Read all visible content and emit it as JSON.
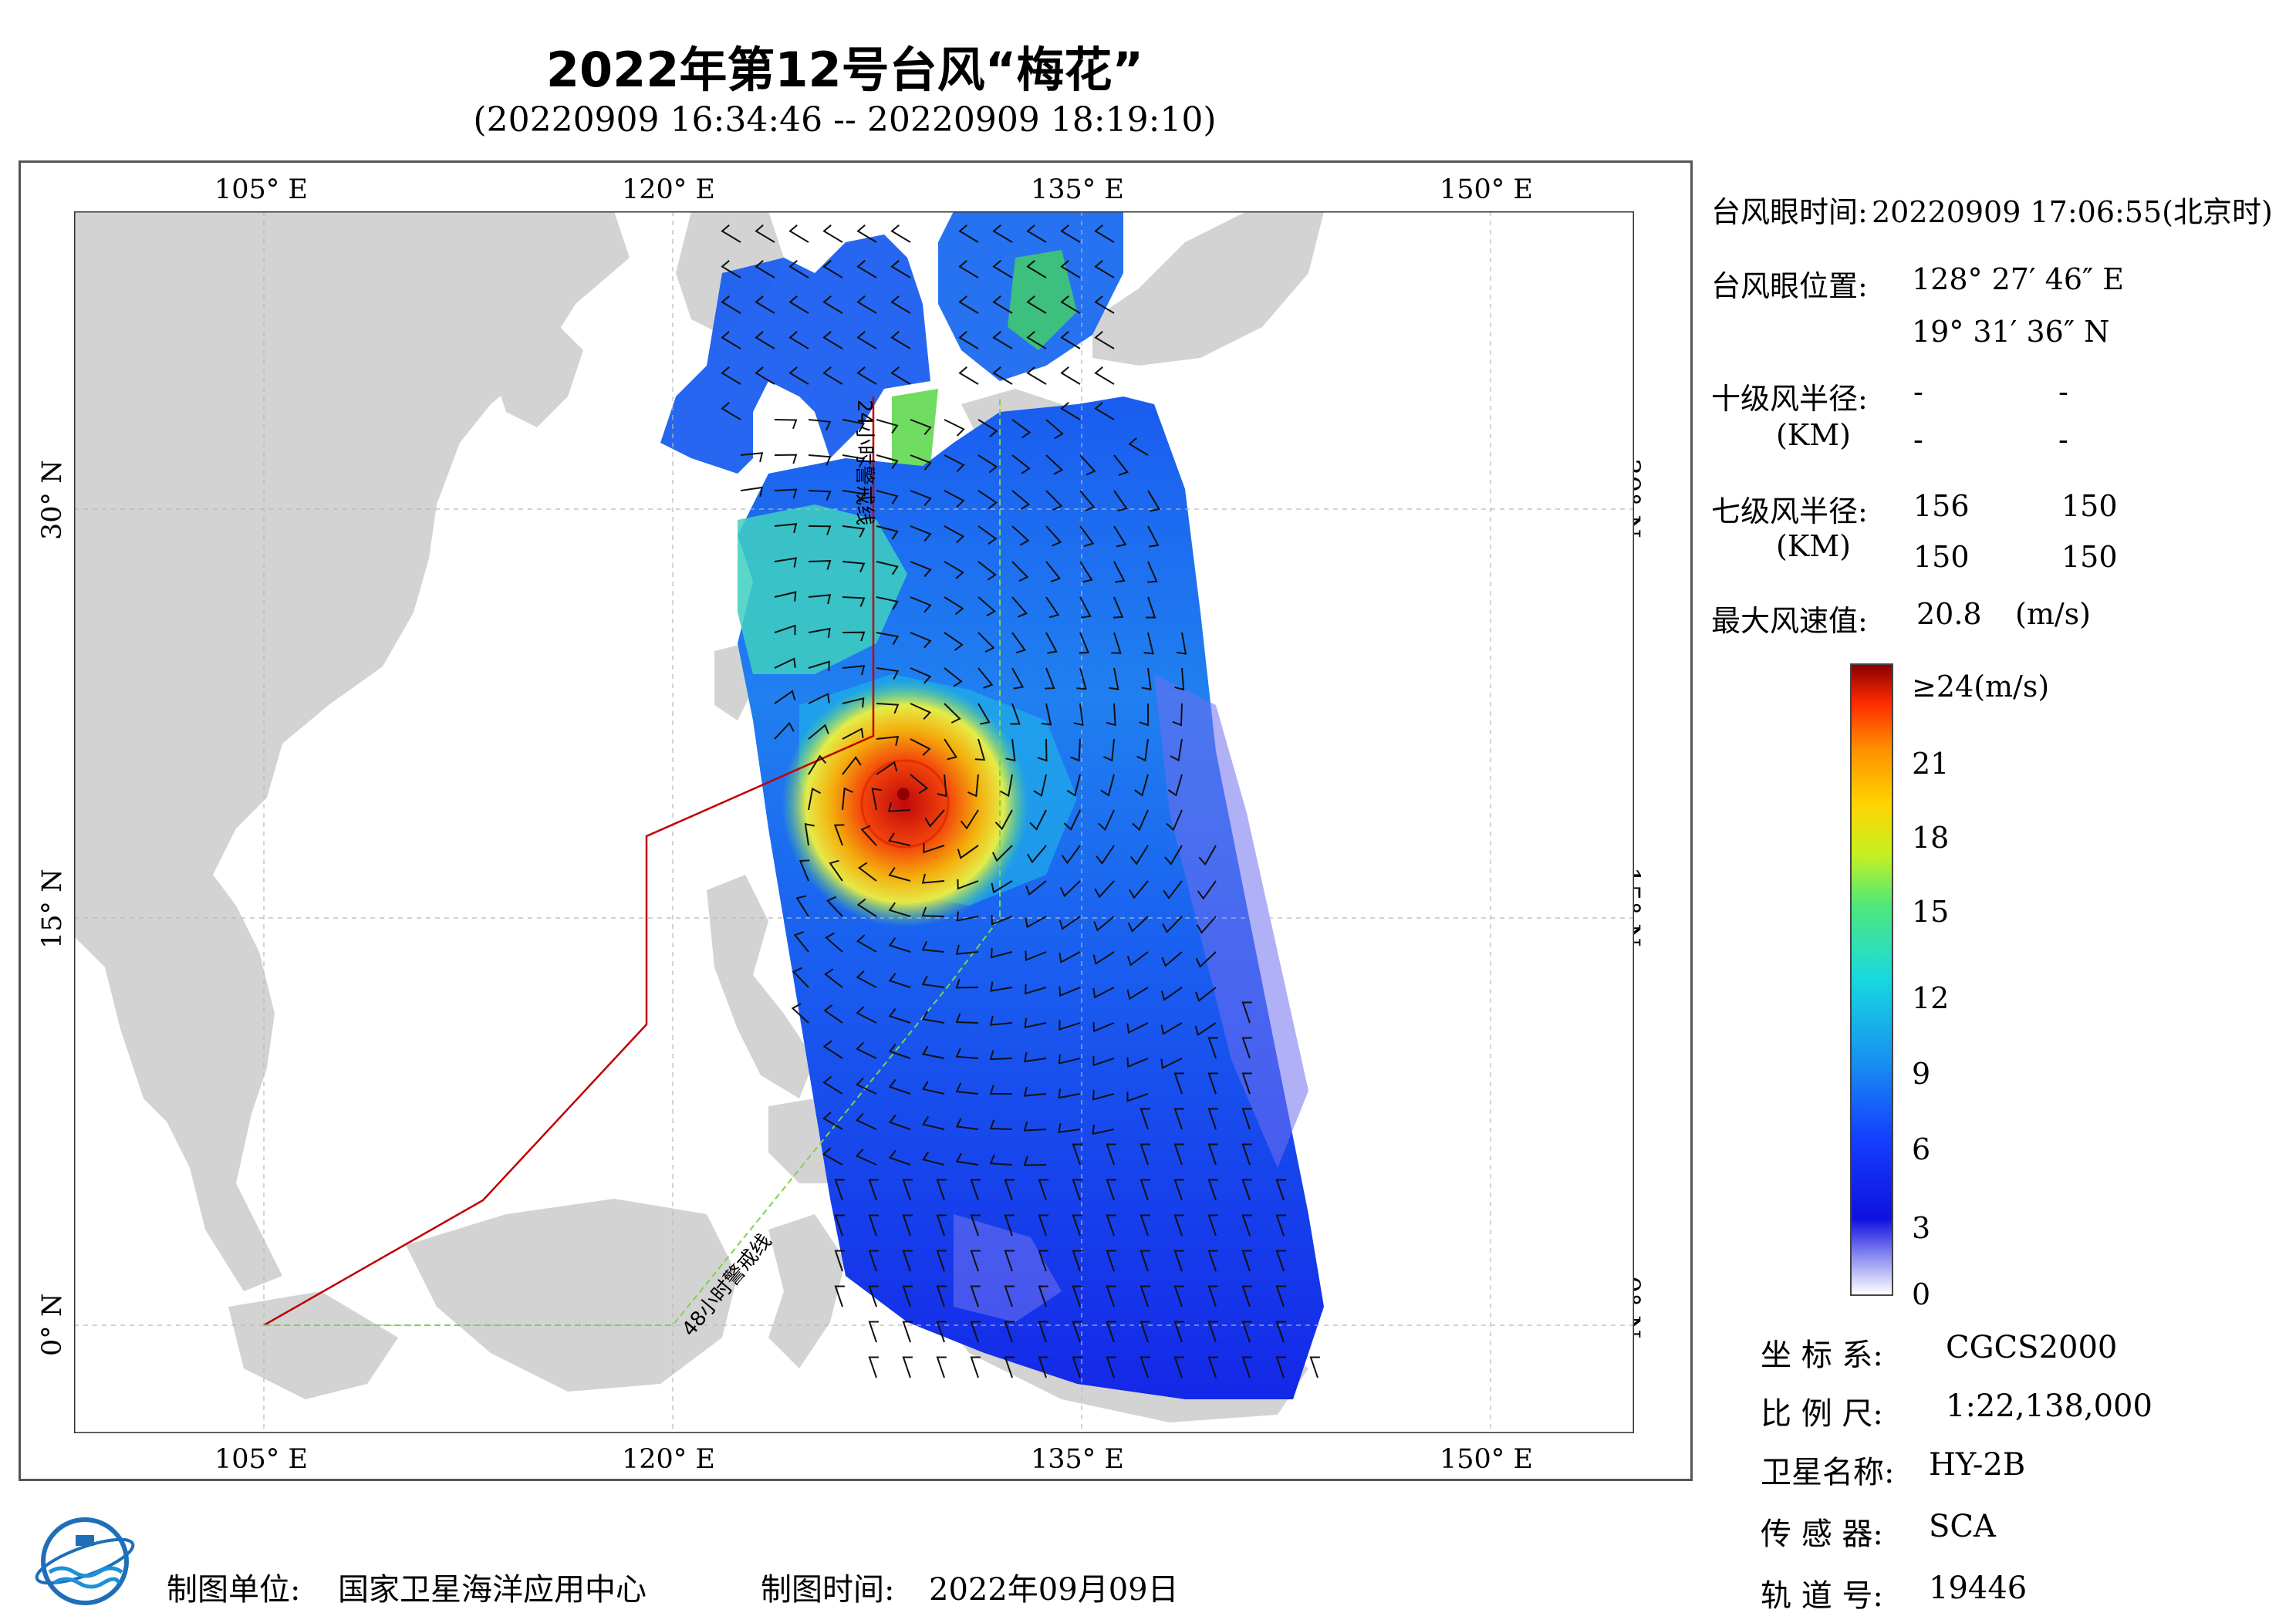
{
  "title": "2022年第12号台风“梅花”",
  "subtitle": "(20220909 16:34:46 -- 20220909 18:19:10)",
  "map": {
    "lon_ticks": [
      "105° E",
      "120° E",
      "135° E",
      "150° E"
    ],
    "lat_ticks": [
      "30° N",
      "15° N",
      "0° N"
    ],
    "line_24h_label": "24小时警戒线",
    "line_48h_label": "48小时警戒线",
    "line_24h_color": "#c00000",
    "line_48h_color": "#7fd24a",
    "land_color": "#d3d3d3",
    "typhoon_eye_lon": 128.46,
    "typhoon_eye_lat": 19.53
  },
  "info": {
    "eye_time_label": "台风眼时间:",
    "eye_time_value": "20220909 17:06:55(北京时)",
    "eye_pos_label": "台风眼位置:",
    "eye_lon": "128° 27′ 46″ E",
    "eye_lat": "19° 31′ 36″ N",
    "r10_label": "十级风半径:",
    "r10_unit": "(KM)",
    "r10_values": [
      "-",
      "-",
      "-",
      "-"
    ],
    "r7_label": "七级风半径:",
    "r7_unit": "(KM)",
    "r7_values": [
      "156",
      "150",
      "150",
      "150"
    ],
    "max_wind_label": "最大风速值:",
    "max_wind_value": "20.8",
    "max_wind_unit": "(m/s)"
  },
  "colorbar": {
    "labels": [
      "≥24(m/s)",
      "21",
      "18",
      "15",
      "12",
      "9",
      "6",
      "3",
      "0"
    ],
    "stops": [
      "#8b0000",
      "#ff2a00",
      "#ff8c00",
      "#ffd400",
      "#c8f020",
      "#50e878",
      "#18d8e0",
      "#1890f0",
      "#1440ff",
      "#1010e0",
      "#8c8cf0",
      "#ffffff"
    ]
  },
  "meta": {
    "crs_label": "坐 标 系:",
    "crs_value": "CGCS2000",
    "scale_label": "比 例 尺:",
    "scale_value": "1:22,138,000",
    "satellite_label": "卫星名称:",
    "satellite_value": "HY-2B",
    "sensor_label": "传 感 器:",
    "sensor_value": "SCA",
    "orbit_label": "轨 道 号:",
    "orbit_value": "19446"
  },
  "footer": {
    "unit_label": "制图单位:",
    "unit_value": "国家卫星海洋应用中心",
    "time_label": "制图时间:",
    "time_value": "2022年09月09日"
  }
}
